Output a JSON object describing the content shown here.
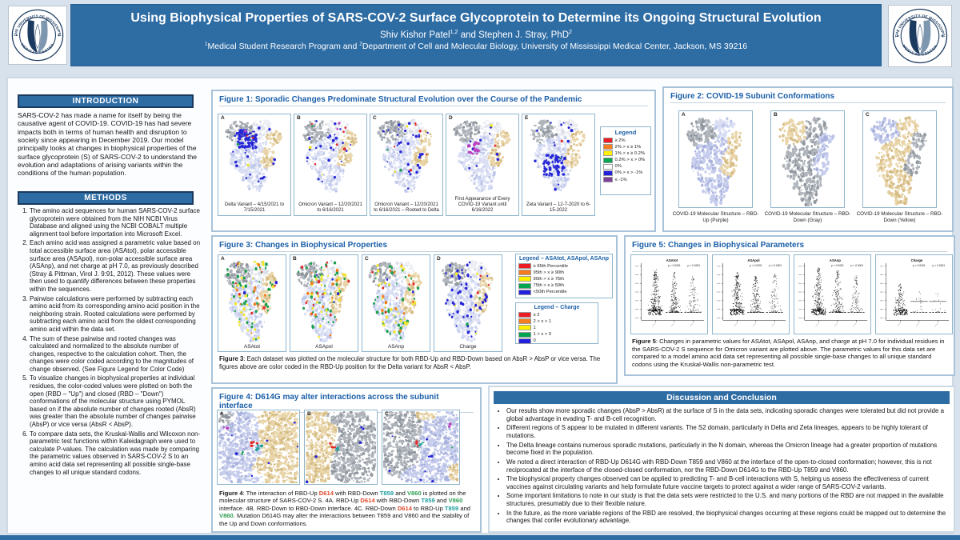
{
  "header": {
    "title": "Using Biophysical Properties of SARS-COV-2 Surface Glycoprotein to Determine its Ongoing Structural Evolution",
    "authors_1": "Shiv Kishor Patel",
    "authors_sup1": "1,2",
    "authors_2": " and Stephen J. Stray, PhD",
    "authors_sup2": "2",
    "affil_sup1": "1",
    "affil_1": "Medical Student Research Program and ",
    "affil_sup2": "2",
    "affil_2": "Department of Cell and Molecular Biology, University of Mississippi Medical Center, Jackson, MS 39216",
    "logo_top": "THE UNIVERSITY OF MISSISSIPPI",
    "logo_bottom": "MEDICAL CENTER",
    "banner_color": "#2e6ca4"
  },
  "introduction": {
    "heading": "INTRODUCTION",
    "body": "SARS-COV-2 has made a name for itself by being the causative agent of COVID-19. COVID-19 has had severe impacts both in terms of human health and disruption to society since appearing in December 2019. Our model principally looks at changes in biophysical properties of the surface glycoprotein (S) of SARS-COV-2 to understand the evolution and adaptations of arising variants within the conditions of the human population."
  },
  "methods": {
    "heading": "METHODS",
    "items": [
      "The amino acid sequences for human SARS-COV-2 surface glycoprotein were obtained from the NIH NCBI Virus Database and aligned using the NCBI COBALT multiple alignment tool before importation into Microsoft Excel.",
      "Each amino acid was assigned a parametric value based on total accessible surface area (ASAtot), polar accessible surface area (ASApol), non-polar accessible surface area (ASAnp), and net charge at pH 7.0, as previously described (Stray & Pittman, Virol J. 9:91, 2012). These values were then used to quantify differences between these properties within the sequences.",
      "Pairwise calculations were performed by subtracting each amino acid from its corresponding amino acid position in the neighboring strain. Rooted calculations were performed by subtracting each amino acid from the oldest corresponding amino acid within the data set.",
      "The sum of these pairwise and rooted changes was calculated and normalized to the absolute number of changes, respective to the calculation cohort. Then, the changes were color coded according to the magnitudes of change observed. (See Figure Legend for Color Code)",
      "To visualize changes in biophysical properties at individual residues, the color-coded values were plotted on both the open (RBD – \"Up\") and closed (RBD – \"Down\") conformations of the molecular structure using PYMOL based on if the absolute number of changes rooted (AbsR) was greater than the absolute number of changes pairwise (AbsP) or vice versa (AbsR < AbsP).",
      "To compare data sets, the Kruskal-Wallis and Wilcoxon non-parametric test functions within Kaleidagraph were used to calculate P-values. The calculation was made by comparing the parametric values observed in SARS-COV-2 S to an amino acid data set representing all possible single-base changes to all unique standard codons."
    ]
  },
  "figure1": {
    "title": "Figure 1: Sporadic Changes Predominate Structural Evolution over the Course of the Pandemic",
    "panels": [
      {
        "label": "A",
        "caption": "Delta Variant – 4/15/2021 to 7/15/2021"
      },
      {
        "label": "B",
        "caption": "Omicron Variant – 12/20/2021 to 6/16/2021"
      },
      {
        "label": "C",
        "caption": "Omicron Variant – 12/20/2021 to 6/16/2021 – Rooted to Delta"
      },
      {
        "label": "D",
        "caption": "First Appearance of Every COVID-19 Variant until 6/16/2022"
      },
      {
        "label": "E",
        "caption": "Zeta Variant – 12-7-2020 to 6-15-2022"
      }
    ],
    "legend": {
      "title": "Legend",
      "entries": [
        {
          "color": "#ed1c24",
          "label": "≥ 2%"
        },
        {
          "color": "#f57e20",
          "label": "2% > x ≥ 1%"
        },
        {
          "color": "#fff200",
          "label": "1% > x ≥ 0.2%"
        },
        {
          "color": "#00a550",
          "label": "0.2% > x > 0%"
        },
        {
          "color": "#ffffff",
          "label": "0%"
        },
        {
          "color": "#2121de",
          "label": "0% > x > -1%"
        },
        {
          "color": "#7d4199",
          "label": "≤ -1%"
        }
      ]
    }
  },
  "figure2": {
    "title": "Figure 2: COVID-19 Subunit Conformations",
    "panels": [
      {
        "label": "A",
        "caption": "COVID-19 Molecular Structure – RBD-Up (Purple)"
      },
      {
        "label": "B",
        "caption": "COVID-19 Molecular Structure – RBD-Down (Gray)"
      },
      {
        "label": "C",
        "caption": "COVID-19 Molecular Structure – RBD-Down (Yellow)"
      }
    ]
  },
  "figure3": {
    "title": "Figure 3: Changes in Biophysical Properties",
    "panels": [
      {
        "label": "A",
        "caption": "ASAtot"
      },
      {
        "label": "B",
        "caption": "ASApol"
      },
      {
        "label": "C",
        "caption": "ASAnp"
      },
      {
        "label": "D",
        "caption": "Charge"
      }
    ],
    "legend_asa": {
      "title": "Legend – ASAtot, ASApol, ASAnp",
      "entries": [
        {
          "color": "#ed1c24",
          "label": "≥ 95th Percentile"
        },
        {
          "color": "#f57e20",
          "label": "95th > x ≥ 90th"
        },
        {
          "color": "#fff200",
          "label": "90th > x ≥ 75th"
        },
        {
          "color": "#00a550",
          "label": "75th > x ≥ 50th"
        },
        {
          "color": "#2121de",
          "label": "<50th Percentile"
        }
      ]
    },
    "legend_charge": {
      "title": "Legend – Charge",
      "entries": [
        {
          "color": "#ed1c24",
          "label": "≥ 2"
        },
        {
          "color": "#f57e20",
          "label": "2 > x > 1"
        },
        {
          "color": "#fff200",
          "label": "1"
        },
        {
          "color": "#00a550",
          "label": "1 > x > 0"
        },
        {
          "color": "#2121de",
          "label": "0"
        }
      ]
    },
    "caption_segments": [
      {
        "t": "Figure 3",
        "c": "b"
      },
      {
        "t": ": Each dataset was plotted on the molecular structure for both RBD-Up and RBD-Down based on AbsR > AbsP or vice versa. The figures above are color coded in the RBD-Up position for the Delta variant for AbsR < AbsP.",
        "c": ""
      }
    ]
  },
  "figure4": {
    "title": "Figure 4: D614G may alter interactions across the subunit interface",
    "panels": [
      {
        "label": "A"
      },
      {
        "label": "B"
      },
      {
        "label": "C"
      }
    ],
    "residue_colors": {
      "D614": "#e2482a",
      "T859": "#1f9e9e",
      "V860": "#2f9e54"
    },
    "caption_segments": [
      {
        "t": "Figure 4",
        "c": "b"
      },
      {
        "t": ": The interaction of RBD-Up ",
        "c": ""
      },
      {
        "t": "D614",
        "c": "red"
      },
      {
        "t": " with RBD-Down ",
        "c": ""
      },
      {
        "t": "T859",
        "c": "teal"
      },
      {
        "t": " and ",
        "c": ""
      },
      {
        "t": "V860",
        "c": "grn"
      },
      {
        "t": " is plotted on the molecular structure of SARS-COV-2 S.  4A. RBD-Up ",
        "c": ""
      },
      {
        "t": "D614",
        "c": "red"
      },
      {
        "t": " with RBD-Down ",
        "c": ""
      },
      {
        "t": "T859",
        "c": "teal"
      },
      {
        "t": " and ",
        "c": ""
      },
      {
        "t": "V860",
        "c": "grn"
      },
      {
        "t": " interface. 4B. RBD-Down to RBD-Down interface. 4C. RBD-Down ",
        "c": ""
      },
      {
        "t": "D614",
        "c": "red"
      },
      {
        "t": " to RBD-Up ",
        "c": ""
      },
      {
        "t": "T859",
        "c": "teal"
      },
      {
        "t": " and ",
        "c": ""
      },
      {
        "t": "V860",
        "c": "grn"
      },
      {
        "t": ". Mutation D614G may alter the interactions between T859 and V860 and  the stability of the Up and Down conformations.",
        "c": ""
      }
    ]
  },
  "figure5": {
    "title": "Figure 5: Changes in Biophysical Parameters",
    "plots": [
      {
        "title": "ASAtot",
        "p1": "p < 0.0001",
        "p2": "p < 0.0001"
      },
      {
        "title": "ASApol",
        "p1": "p < 0.0001",
        "p2": "p < 0.0001"
      },
      {
        "title": "ASAnp",
        "p1": "p < 0.0001",
        "p2": "p < 0.0001"
      },
      {
        "title": "Charge",
        "p1": "p < 0.0001",
        "p2": "p < 0.0001"
      }
    ],
    "caption_segments": [
      {
        "t": "Figure 5",
        "c": "b"
      },
      {
        "t": ": Changes in parametric values for ASAtot, ASApol, ASAnp, and charge at pH 7.0 for individual residues in the SARS-COV-2 S sequence for Omicron variant  are plotted above. The parametric values for this data set are compared to a model amino acid data set representing all possible single-base changes to all unique standard codons using the Kruskal-Wallis non-parametric test.",
        "c": ""
      }
    ]
  },
  "discussion": {
    "heading": "Discussion and Conclusion",
    "bullets": [
      "Our results show more sporadic changes (AbsP > AbsR) at the surface of S in the data sets, indicating sporadic changes were tolerated but did not provide a global advantage in evading T- and B-cell recognition.",
      "Different regions of S appear to be mutated in different variants. The S2 domain, particularly in Delta and Zeta lineages, appears to be highly tolerant of mutations.",
      "The Delta lineage contains numerous sporadic mutations, particularly in the N domain, whereas the Omicron lineage had a greater proportion of mutations become fixed in the population.",
      "We noted a direct interaction of RBD-Up D614G with RBD-Down T859 and V860 at the interface of the open-to-closed conformation; however, this is not reciprocated at the interface of the closed-closed conformation, nor the RBD-Down D614G to the RBD-Up T859 and V860.",
      "The biophysical property changes observed can be applied to predicting T- and B-cell interactions with S, helping us assess the effectiveness of current vaccines against circulating variants and help formulate future vaccine targets to protect against a wider range of SARS-COV-2 variants.",
      "Some important limitations to note in our study is that the data sets were restricted to the U.S. and many portions of the RBD are not mapped in the available structures,  presumably due to their flexible nature.",
      "In the future, as the more variable regions of the RBD are resolved, the biophysical changes occurring at these regions could be mapped out to determine the changes that confer evolutionary advantage."
    ]
  }
}
